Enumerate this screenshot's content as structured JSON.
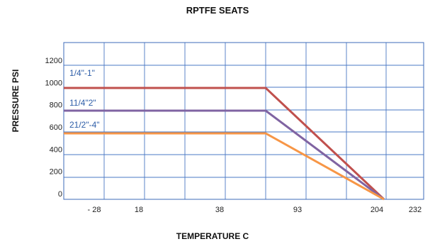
{
  "chart_data": {
    "type": "line",
    "title": "RPTFE SEATS",
    "xlabel": "TEMPERATURE C",
    "ylabel": "PRESSURE PSI",
    "x_ticks": [
      "- 28",
      "18",
      "38",
      "93",
      "204",
      "232"
    ],
    "y_ticks": [
      "0",
      "200",
      "400",
      "600",
      "800",
      "1000",
      "1200"
    ],
    "ylim": [
      0,
      1200
    ],
    "grid": true,
    "legend": "inline labels above lines",
    "series": [
      {
        "name": "1/4\"-1\"",
        "color": "#c0504d",
        "x": [
          "- 28",
          "93",
          "204"
        ],
        "values": [
          1000,
          1000,
          0
        ]
      },
      {
        "name": "11/4\"2\"",
        "color": "#8064a2",
        "x": [
          "- 28",
          "93",
          "204"
        ],
        "values": [
          800,
          800,
          0
        ]
      },
      {
        "name": "21/2\"-4\"",
        "color": "#f79646",
        "x": [
          "- 28",
          "93",
          "204"
        ],
        "values": [
          600,
          600,
          0
        ]
      }
    ]
  }
}
